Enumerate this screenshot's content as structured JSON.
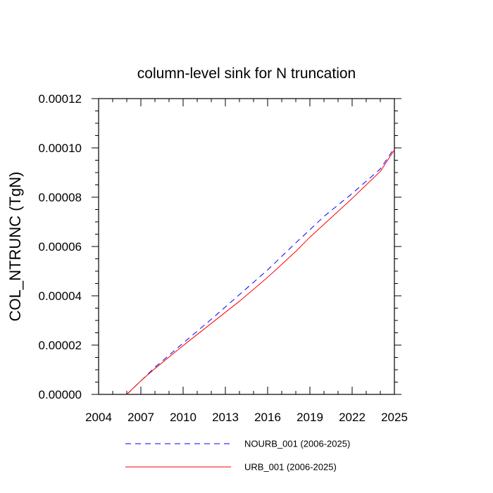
{
  "chart_data": {
    "type": "line",
    "title": "column-level sink for N truncation",
    "xlabel": "",
    "ylabel": "COL_NTRUNC  (TgN)",
    "xlim": [
      2004,
      2025
    ],
    "ylim": [
      0,
      0.00012
    ],
    "xticks": [
      2004,
      2007,
      2010,
      2013,
      2016,
      2019,
      2022,
      2025
    ],
    "xtick_labels": [
      "2004",
      "2007",
      "2010",
      "2013",
      "2016",
      "2019",
      "2022",
      "2025"
    ],
    "yticks": [
      0,
      2e-05,
      4e-05,
      6e-05,
      8e-05,
      0.0001,
      0.00012
    ],
    "ytick_labels": [
      "0.00000",
      "0.00002",
      "0.00004",
      "0.00006",
      "0.00008",
      "0.00010",
      "0.00012"
    ],
    "grid": false,
    "legend_position": "bottom",
    "series": [
      {
        "name": "NOURB_001 (2006-2025)",
        "color": "#0000ff",
        "style": "dashed",
        "x": [
          2006,
          2007,
          2008,
          2010,
          2012,
          2014,
          2016,
          2018,
          2019,
          2020,
          2022,
          2024,
          2025
        ],
        "y": [
          0,
          5.5e-06,
          1.1e-05,
          2.08e-05,
          3.05e-05,
          4.05e-05,
          5.05e-05,
          6.15e-05,
          6.68e-05,
          7.22e-05,
          8.15e-05,
          9.15e-05,
          0.0001
        ]
      },
      {
        "name": "URB_001 (2006-2025)",
        "color": "#ff0000",
        "style": "solid",
        "x": [
          2006,
          2007,
          2008,
          2010,
          2012,
          2014,
          2016,
          2018,
          2019,
          2020,
          2022,
          2024,
          2025
        ],
        "y": [
          0,
          5.5e-06,
          1.05e-05,
          1.98e-05,
          2.88e-05,
          3.78e-05,
          4.75e-05,
          5.8e-05,
          6.38e-05,
          6.9e-05,
          7.95e-05,
          9.05e-05,
          9.92e-05
        ]
      }
    ]
  }
}
